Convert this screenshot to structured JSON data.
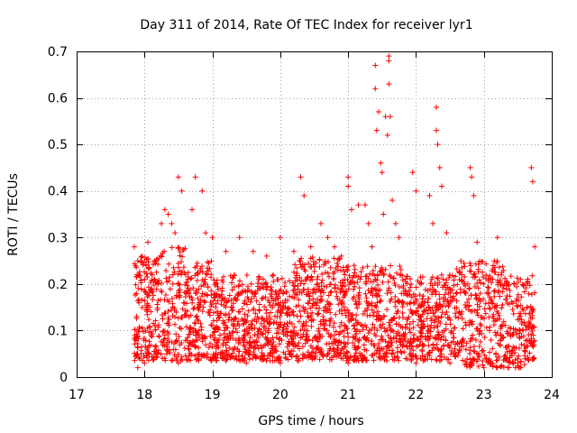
{
  "chart_data": {
    "type": "scatter",
    "title": "Day 311 of 2014, Rate Of TEC Index for receiver lyr1",
    "xlabel": "GPS time / hours",
    "ylabel": "ROTI / TECUs",
    "xlim": [
      17,
      24
    ],
    "ylim": [
      0,
      0.7
    ],
    "xticks": [
      "17",
      "18",
      "19",
      "20",
      "21",
      "22",
      "23",
      "24"
    ],
    "yticks": [
      "0",
      "0.1",
      "0.2",
      "0.3",
      "0.4",
      "0.5",
      "0.6",
      "0.7"
    ],
    "grid": true,
    "marker": "plus",
    "color": "#ff0000",
    "series": [
      {
        "name": "ROTI",
        "points": [
          [
            17.85,
            0.28
          ],
          [
            17.9,
            0.25
          ],
          [
            17.95,
            0.05
          ],
          [
            18.05,
            0.29
          ],
          [
            18.15,
            0.25
          ],
          [
            18.25,
            0.33
          ],
          [
            18.3,
            0.36
          ],
          [
            18.35,
            0.35
          ],
          [
            18.4,
            0.33
          ],
          [
            18.45,
            0.31
          ],
          [
            18.5,
            0.43
          ],
          [
            18.55,
            0.4
          ],
          [
            18.7,
            0.36
          ],
          [
            18.75,
            0.43
          ],
          [
            18.85,
            0.4
          ],
          [
            18.9,
            0.31
          ],
          [
            19.0,
            0.3
          ],
          [
            19.2,
            0.27
          ],
          [
            19.4,
            0.3
          ],
          [
            19.6,
            0.27
          ],
          [
            19.8,
            0.26
          ],
          [
            20.0,
            0.3
          ],
          [
            20.2,
            0.27
          ],
          [
            20.3,
            0.43
          ],
          [
            20.35,
            0.39
          ],
          [
            20.45,
            0.28
          ],
          [
            20.6,
            0.33
          ],
          [
            20.7,
            0.3
          ],
          [
            20.8,
            0.28
          ],
          [
            20.9,
            0.26
          ],
          [
            21.0,
            0.43
          ],
          [
            21.0,
            0.41
          ],
          [
            21.05,
            0.36
          ],
          [
            21.15,
            0.37
          ],
          [
            21.25,
            0.37
          ],
          [
            21.3,
            0.33
          ],
          [
            21.35,
            0.28
          ],
          [
            21.4,
            0.67
          ],
          [
            21.4,
            0.62
          ],
          [
            21.42,
            0.53
          ],
          [
            21.45,
            0.57
          ],
          [
            21.48,
            0.46
          ],
          [
            21.5,
            0.44
          ],
          [
            21.52,
            0.35
          ],
          [
            21.55,
            0.56
          ],
          [
            21.58,
            0.52
          ],
          [
            21.6,
            0.69
          ],
          [
            21.6,
            0.68
          ],
          [
            21.6,
            0.63
          ],
          [
            21.62,
            0.56
          ],
          [
            21.65,
            0.38
          ],
          [
            21.7,
            0.33
          ],
          [
            21.75,
            0.3
          ],
          [
            21.95,
            0.44
          ],
          [
            22.0,
            0.4
          ],
          [
            22.2,
            0.39
          ],
          [
            22.25,
            0.33
          ],
          [
            22.3,
            0.58
          ],
          [
            22.3,
            0.53
          ],
          [
            22.32,
            0.5
          ],
          [
            22.35,
            0.45
          ],
          [
            22.38,
            0.41
          ],
          [
            22.45,
            0.31
          ],
          [
            22.8,
            0.45
          ],
          [
            22.82,
            0.43
          ],
          [
            22.85,
            0.39
          ],
          [
            22.9,
            0.29
          ],
          [
            23.2,
            0.3
          ],
          [
            23.7,
            0.45
          ],
          [
            23.72,
            0.42
          ],
          [
            23.75,
            0.28
          ],
          [
            17.9,
            0.02
          ],
          [
            18.0,
            0.03
          ],
          [
            18.5,
            0.03
          ],
          [
            19.0,
            0.04
          ],
          [
            19.5,
            0.03
          ],
          [
            20.0,
            0.03
          ],
          [
            20.5,
            0.04
          ],
          [
            21.0,
            0.03
          ],
          [
            21.5,
            0.04
          ],
          [
            22.0,
            0.03
          ],
          [
            22.5,
            0.03
          ],
          [
            23.0,
            0.02
          ],
          [
            23.2,
            0.02
          ],
          [
            23.5,
            0.03
          ]
        ]
      }
    ]
  }
}
